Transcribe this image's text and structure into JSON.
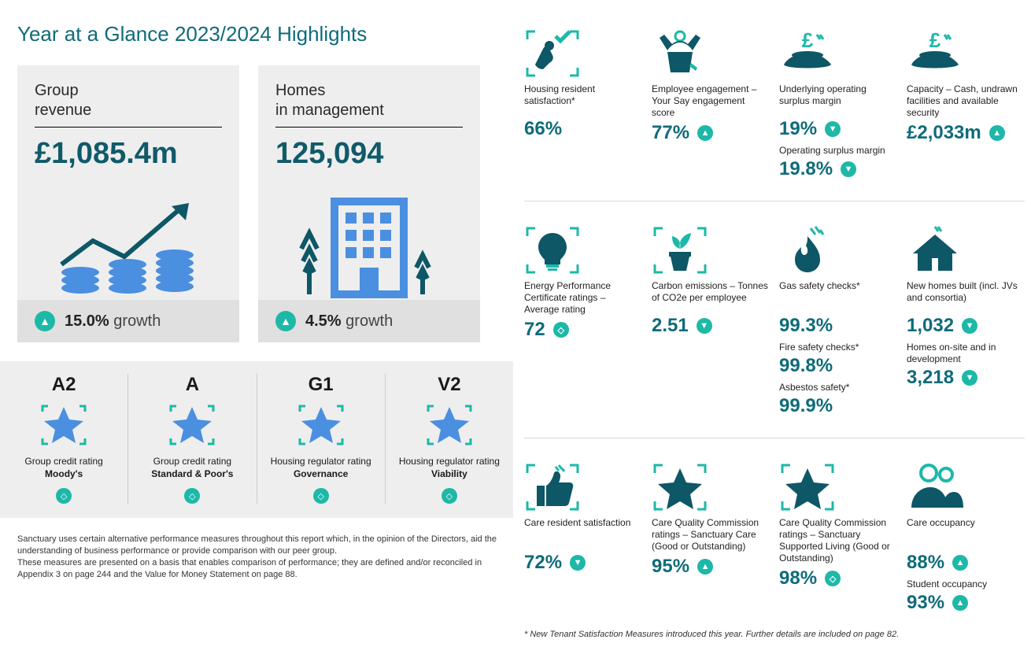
{
  "colors": {
    "heading": "#0f6b7a",
    "value": "#0f6b7a",
    "teal": "#1db8a8",
    "iconDark": "#0d5766",
    "iconBlue": "#4a8fe0",
    "cardBg": "#eeeeee",
    "cardBg2": "#e0e0e0"
  },
  "title": "Year at a Glance 2023/2024 Highlights",
  "bigCards": [
    {
      "label": "Group\nrevenue",
      "value": "£1,085.4m",
      "footerPct": "15.0%",
      "footerWord": "growth",
      "direction": "up",
      "graphic": "coins"
    },
    {
      "label": "Homes\nin management",
      "value": "125,094",
      "footerPct": "4.5%",
      "footerWord": "growth",
      "direction": "up",
      "graphic": "building"
    }
  ],
  "ratings": [
    {
      "grade": "A2",
      "line1": "Group credit rating",
      "line2": "Moody's",
      "indicator": "same"
    },
    {
      "grade": "A",
      "line1": "Group credit rating",
      "line2": "Standard & Poor's",
      "indicator": "same"
    },
    {
      "grade": "G1",
      "line1": "Housing regulator rating",
      "line2": "Governance",
      "indicator": "same"
    },
    {
      "grade": "V2",
      "line1": "Housing regulator rating",
      "line2": "Viability",
      "indicator": "same"
    }
  ],
  "leftFootnote": "Sanctuary uses certain alternative performance measures throughout this report which, in the opinion of the Directors, aid the understanding of business performance or provide comparison with our peer group.\nThese measures are presented on a basis that enables comparison of performance; they are defined and/or reconciled in Appendix 3 on page 244 and the Value for Money Statement on page 88.",
  "rightRows": [
    [
      {
        "icon": "hand-check",
        "label": "Housing resident satisfaction*",
        "value": "66%",
        "indicator": null
      },
      {
        "icon": "person-cheer",
        "label": "Employee engagement – Your Say engagement score",
        "value": "77%",
        "indicator": "up"
      },
      {
        "icon": "hand-pound",
        "label": "Underlying operating surplus margin",
        "value": "19%",
        "indicator": "down",
        "extra": [
          {
            "label": "Operating surplus margin",
            "value": "19.8%",
            "indicator": "down"
          }
        ]
      },
      {
        "icon": "hand-pound",
        "label": "Capacity – Cash, undrawn facilities and available security",
        "value": "£2,033m",
        "indicator": "up"
      }
    ],
    [
      {
        "icon": "bulb",
        "label": "Energy Performance Certificate ratings – Average rating",
        "value": "72",
        "indicator": "same"
      },
      {
        "icon": "plant",
        "label": "Carbon emissions – Tonnes of CO2e per employee",
        "value": "2.51",
        "indicator": "down"
      },
      {
        "icon": "flame",
        "label": "Gas safety checks*",
        "value": "99.3%",
        "indicator": null,
        "extra": [
          {
            "label": "Fire safety checks*",
            "value": "99.8%",
            "indicator": null
          },
          {
            "label": "Asbestos safety*",
            "value": "99.9%",
            "indicator": null
          }
        ]
      },
      {
        "icon": "house",
        "label": "New homes built (incl. JVs and consortia)",
        "value": "1,032",
        "indicator": "down",
        "extra": [
          {
            "label": "Homes on-site and in development",
            "value": "3,218",
            "indicator": "down"
          }
        ]
      }
    ],
    [
      {
        "icon": "thumb",
        "label": "Care resident satisfaction",
        "value": "72%",
        "indicator": "down"
      },
      {
        "icon": "star",
        "label": "Care Quality Commission ratings – Sanctuary Care (Good or Outstanding)",
        "value": "95%",
        "indicator": "up"
      },
      {
        "icon": "star",
        "label": "Care Quality Commission ratings – Sanctuary Supported Living (Good or Outstanding)",
        "value": "98%",
        "indicator": "same"
      },
      {
        "icon": "people",
        "label": "Care occupancy",
        "value": "88%",
        "indicator": "up",
        "extra": [
          {
            "label": "Student occupancy",
            "value": "93%",
            "indicator": "up"
          }
        ]
      }
    ]
  ],
  "rightFootnote": "* New Tenant Satisfaction Measures introduced this year. Further details are included on page 82."
}
